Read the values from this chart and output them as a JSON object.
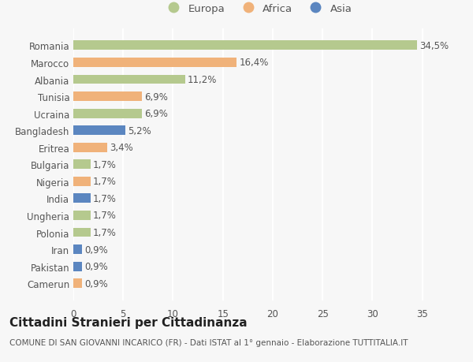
{
  "countries": [
    "Romania",
    "Marocco",
    "Albania",
    "Tunisia",
    "Ucraina",
    "Bangladesh",
    "Eritrea",
    "Bulgaria",
    "Nigeria",
    "India",
    "Ungheria",
    "Polonia",
    "Iran",
    "Pakistan",
    "Camerun"
  ],
  "values": [
    34.5,
    16.4,
    11.2,
    6.9,
    6.9,
    5.2,
    3.4,
    1.7,
    1.7,
    1.7,
    1.7,
    1.7,
    0.9,
    0.9,
    0.9
  ],
  "labels": [
    "34,5%",
    "16,4%",
    "11,2%",
    "6,9%",
    "6,9%",
    "5,2%",
    "3,4%",
    "1,7%",
    "1,7%",
    "1,7%",
    "1,7%",
    "1,7%",
    "0,9%",
    "0,9%",
    "0,9%"
  ],
  "continents": [
    "Europa",
    "Africa",
    "Europa",
    "Africa",
    "Europa",
    "Asia",
    "Africa",
    "Europa",
    "Africa",
    "Asia",
    "Europa",
    "Europa",
    "Asia",
    "Asia",
    "Africa"
  ],
  "colors": {
    "Europa": "#b5c98e",
    "Africa": "#f0b27a",
    "Asia": "#5b86c0"
  },
  "background_color": "#f7f7f7",
  "title": "Cittadini Stranieri per Cittadinanza",
  "subtitle": "COMUNE DI SAN GIOVANNI INCARICO (FR) - Dati ISTAT al 1° gennaio - Elaborazione TUTTITALIA.IT",
  "xlim": [
    0,
    37
  ],
  "xticks": [
    0,
    5,
    10,
    15,
    20,
    25,
    30,
    35
  ],
  "bar_height": 0.55,
  "grid_color": "#ffffff",
  "tick_label_fontsize": 8.5,
  "value_label_fontsize": 8.5,
  "title_fontsize": 11,
  "subtitle_fontsize": 7.5
}
